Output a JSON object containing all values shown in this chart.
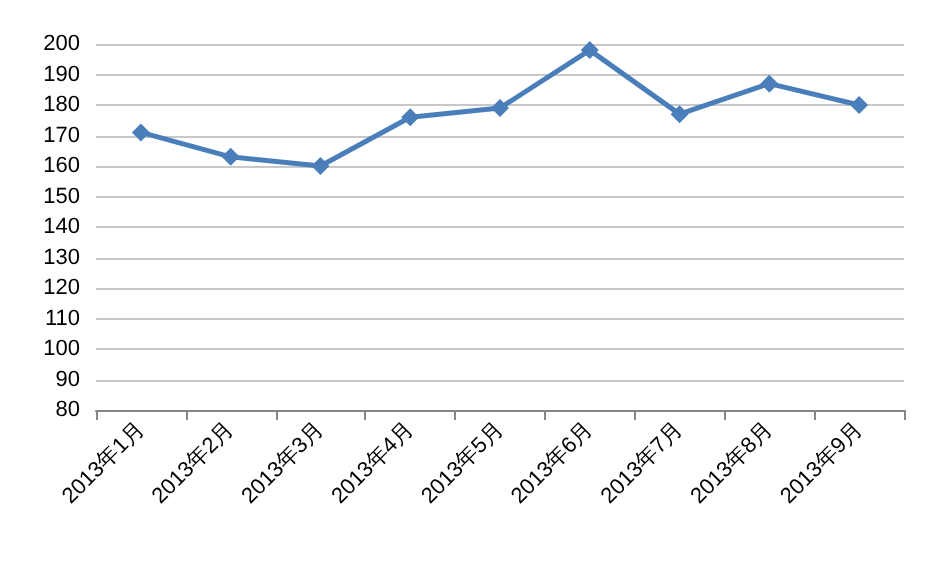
{
  "chart_data": {
    "type": "line",
    "categories": [
      "2013年1月",
      "2013年2月",
      "2013年3月",
      "2013年4月",
      "2013年5月",
      "2013年6月",
      "2013年7月",
      "2013年8月",
      "2013年9月"
    ],
    "series": [
      {
        "color": "#4a7ebb",
        "values": [
          171,
          163,
          160,
          176,
          179,
          198,
          177,
          187,
          180
        ]
      }
    ],
    "ylim": [
      80,
      200
    ],
    "yticks": [
      80,
      90,
      100,
      110,
      120,
      130,
      140,
      150,
      160,
      170,
      180,
      190,
      200
    ],
    "grid": "y",
    "marker": "diamond",
    "line_style": "solid"
  }
}
